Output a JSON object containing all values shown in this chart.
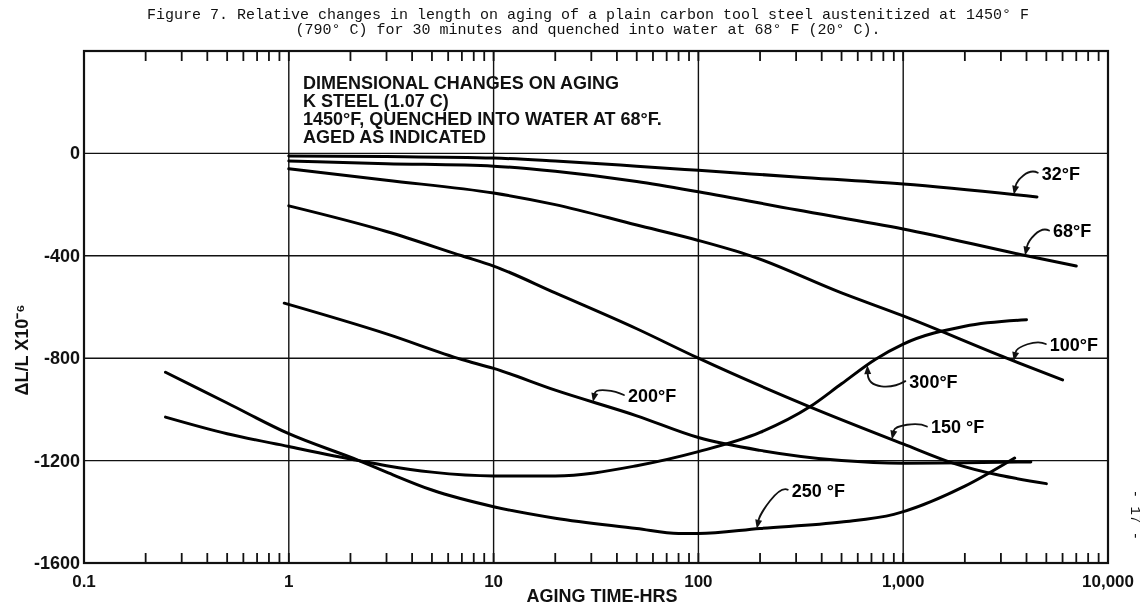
{
  "chart_data": {
    "type": "line",
    "title": "Figure 7. Relative changes in length on aging of a plain carbon tool steel austenitized at 1450° F\n(790° C) for 30 minutes and quenched into water at 68° F (20° C).",
    "xlabel": "AGING TIME-HRS",
    "ylabel": "ΔL/L X10⁻⁶",
    "annotations": [
      "DIMENSIONAL CHANGES ON AGING\nK STEEL (1.07 C)\n1450°F, QUENCHED INTO WATER AT 68°F.\nAGED AS INDICATED",
      "- 17 -"
    ],
    "log": "x",
    "grid": true,
    "xlim": [
      0.1,
      10000
    ],
    "ylim": [
      -1600,
      400
    ],
    "xticks": [
      0.1,
      {
        "value": 0.2,
        "label": null
      },
      {
        "value": 0.3,
        "label": null
      },
      {
        "value": 0.4,
        "label": null
      },
      {
        "value": 0.5,
        "label": null
      },
      {
        "value": 0.6,
        "label": null
      },
      {
        "value": 0.7,
        "label": null
      },
      {
        "value": 0.8,
        "label": null
      },
      {
        "value": 0.9,
        "label": null
      },
      1,
      {
        "value": 2,
        "label": null
      },
      {
        "value": 3,
        "label": null
      },
      {
        "value": 4,
        "label": null
      },
      {
        "value": 5,
        "label": null
      },
      {
        "value": 6,
        "label": null
      },
      {
        "value": 7,
        "label": null
      },
      {
        "value": 8,
        "label": null
      },
      {
        "value": 9,
        "label": null
      },
      10,
      {
        "value": 20,
        "label": null
      },
      {
        "value": 30,
        "label": null
      },
      {
        "value": 40,
        "label": null
      },
      {
        "value": 50,
        "label": null
      },
      {
        "value": 60,
        "label": null
      },
      {
        "value": 70,
        "label": null
      },
      {
        "value": 80,
        "label": null
      },
      {
        "value": 90,
        "label": null
      },
      100,
      {
        "value": 200,
        "label": null
      },
      {
        "value": 300,
        "label": null
      },
      {
        "value": 400,
        "label": null
      },
      {
        "value": 500,
        "label": null
      },
      {
        "value": 600,
        "label": null
      },
      {
        "value": 700,
        "label": null
      },
      {
        "value": 800,
        "label": null
      },
      {
        "value": 900,
        "label": null
      },
      {
        "value": 1000,
        "label": "1,000"
      },
      {
        "value": 2000,
        "label": null
      },
      {
        "value": 3000,
        "label": null
      },
      {
        "value": 4000,
        "label": null
      },
      {
        "value": 5000,
        "label": null
      },
      {
        "value": 6000,
        "label": null
      },
      {
        "value": 7000,
        "label": null
      },
      {
        "value": 8000,
        "label": null
      },
      {
        "value": 9000,
        "label": null
      },
      {
        "value": 10000,
        "label": "10,000"
      }
    ],
    "yticks": [
      -1600,
      -1200,
      -800,
      -400,
      0
    ],
    "series": [
      {
        "name": "32°F",
        "color": "#000000",
        "x": [
          1,
          3,
          10,
          20,
          50,
          100,
          300,
          1000,
          4500
        ],
        "values": [
          -10,
          -12,
          -18,
          -30,
          -50,
          -66,
          -92,
          -120,
          -170
        ]
      },
      {
        "name": "68°F",
        "color": "#000000",
        "x": [
          1,
          3,
          10,
          20,
          50,
          100,
          300,
          1000,
          4000,
          7000
        ],
        "values": [
          -30,
          -40,
          -50,
          -70,
          -110,
          -150,
          -220,
          -295,
          -400,
          -440
        ]
      },
      {
        "name": "100°F",
        "color": "#000000",
        "x": [
          1,
          3,
          10,
          20,
          50,
          100,
          180,
          500,
          1000,
          3200,
          6000
        ],
        "values": [
          -60,
          -105,
          -155,
          -200,
          -280,
          -340,
          -400,
          -545,
          -635,
          -800,
          -885
        ]
      },
      {
        "name": "150 °F",
        "color": "#000000",
        "x": [
          1,
          3,
          7,
          10,
          20,
          50,
          100,
          350,
          1000,
          1750,
          5000
        ],
        "values": [
          -205,
          -305,
          -400,
          -440,
          -545,
          -685,
          -800,
          -990,
          -1135,
          -1210,
          -1290
        ]
      },
      {
        "name": "200°F",
        "color": "#000000",
        "x": [
          0.95,
          3,
          7,
          10,
          20,
          50,
          100,
          200,
          500,
          1000,
          4200
        ],
        "values": [
          -585,
          -705,
          -805,
          -840,
          -925,
          -1025,
          -1110,
          -1160,
          -1200,
          -1210,
          -1205
        ]
      },
      {
        "name": "250 °F",
        "color": "#000000",
        "x": [
          0.25,
          0.5,
          1,
          2.2,
          3,
          5,
          10,
          20,
          50,
          80,
          100,
          200,
          500,
          900,
          2000,
          3500
        ],
        "values": [
          -855,
          -975,
          -1095,
          -1200,
          -1245,
          -1315,
          -1380,
          -1425,
          -1465,
          -1485,
          -1485,
          -1465,
          -1440,
          -1410,
          -1300,
          -1190
        ]
      },
      {
        "name": "300°F",
        "color": "#000000",
        "x": [
          0.25,
          0.5,
          1,
          2.2,
          3,
          5,
          10,
          20,
          50,
          100,
          200,
          350,
          500,
          730,
          1000,
          2000,
          4000
        ],
        "values": [
          -1030,
          -1095,
          -1145,
          -1200,
          -1220,
          -1245,
          -1260,
          -1260,
          -1220,
          -1165,
          -1090,
          -990,
          -900,
          -805,
          -745,
          -675,
          -650
        ]
      }
    ]
  }
}
